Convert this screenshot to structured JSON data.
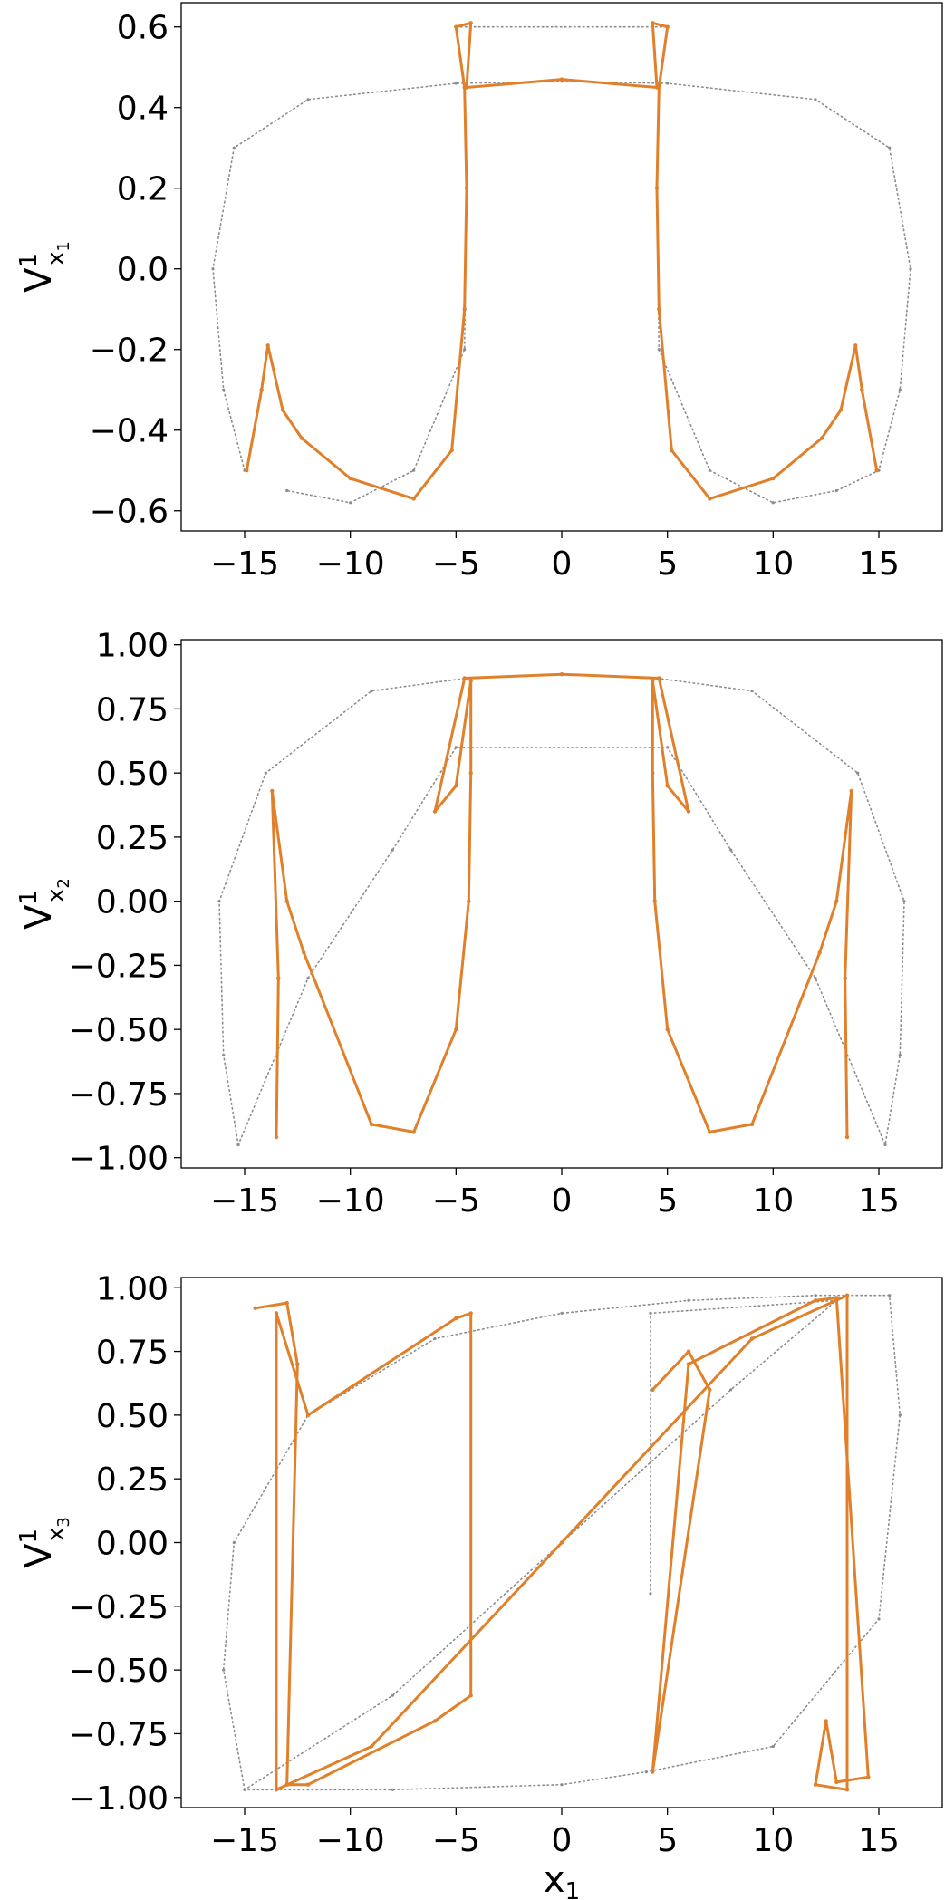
{
  "figure": {
    "xlabel": "x1",
    "colors": {
      "scan": "#8c8c8c",
      "trajectory": "#e0802a"
    }
  },
  "chart_data": [
    {
      "type": "scatter",
      "title": "",
      "ylabel": "V1x1",
      "xlim": [
        -18,
        18
      ],
      "ylim": [
        -0.65,
        0.66
      ],
      "xticks": [
        -15,
        -10,
        -5,
        0,
        5,
        10,
        15
      ],
      "xtick_labels": [
        "−15",
        "−10",
        "−5",
        "0",
        "5",
        "10",
        "15"
      ],
      "yticks": [
        0.6,
        0.4,
        0.2,
        0.0,
        -0.2,
        -0.4,
        -0.6
      ],
      "ytick_labels": [
        "0.6",
        "0.4",
        "0.2",
        "0.0",
        "−0.2",
        "−0.4",
        "−0.6"
      ],
      "grid": false,
      "series": [
        {
          "kind": "scan",
          "points": [
            [
              -15,
              -0.5
            ],
            [
              -16,
              -0.3
            ],
            [
              -16.5,
              0.0
            ],
            [
              -15.5,
              0.3
            ],
            [
              -12,
              0.42
            ],
            [
              -5,
              0.46
            ],
            [
              0,
              0.465
            ],
            [
              5,
              0.46
            ],
            [
              12,
              0.42
            ],
            [
              15.5,
              0.3
            ],
            [
              16.5,
              0.0
            ],
            [
              16,
              -0.3
            ],
            [
              15,
              -0.5
            ],
            [
              13,
              -0.55
            ],
            [
              10,
              -0.58
            ],
            [
              7,
              -0.5
            ],
            [
              4.6,
              -0.2
            ],
            [
              4.5,
              0.2
            ],
            [
              4.6,
              0.45
            ],
            [
              5,
              0.6
            ],
            [
              -5,
              0.6
            ],
            [
              -4.6,
              0.45
            ],
            [
              -4.5,
              0.2
            ],
            [
              -4.6,
              -0.2
            ],
            [
              -7,
              -0.5
            ],
            [
              -10,
              -0.58
            ],
            [
              -13,
              -0.55
            ]
          ]
        },
        {
          "kind": "trajectory",
          "points": [
            [
              -14.9,
              -0.5
            ],
            [
              -14.2,
              -0.3
            ],
            [
              -13.9,
              -0.19
            ],
            [
              -13.2,
              -0.35
            ],
            [
              -12.3,
              -0.42
            ],
            [
              -10,
              -0.52
            ],
            [
              -7,
              -0.57
            ],
            [
              -5.2,
              -0.45
            ],
            [
              -4.6,
              -0.1
            ],
            [
              -4.5,
              0.2
            ],
            [
              -4.6,
              0.45
            ],
            [
              -5,
              0.6
            ],
            [
              -4.3,
              0.61
            ],
            [
              -4.5,
              0.45
            ],
            [
              0,
              0.47
            ],
            [
              4.5,
              0.45
            ],
            [
              4.3,
              0.61
            ],
            [
              5,
              0.6
            ],
            [
              4.6,
              0.45
            ],
            [
              4.5,
              0.2
            ],
            [
              4.6,
              -0.1
            ],
            [
              5.2,
              -0.45
            ],
            [
              7,
              -0.57
            ],
            [
              10,
              -0.52
            ],
            [
              12.3,
              -0.42
            ],
            [
              13.2,
              -0.35
            ],
            [
              13.9,
              -0.19
            ],
            [
              14.2,
              -0.3
            ],
            [
              14.9,
              -0.5
            ]
          ]
        }
      ]
    },
    {
      "type": "scatter",
      "title": "",
      "ylabel": "V1x2",
      "xlim": [
        -18,
        18
      ],
      "ylim": [
        -1.04,
        1.02
      ],
      "xticks": [
        -15,
        -10,
        -5,
        0,
        5,
        10,
        15
      ],
      "xtick_labels": [
        "−15",
        "−10",
        "−5",
        "0",
        "5",
        "10",
        "15"
      ],
      "yticks": [
        1.0,
        0.75,
        0.5,
        0.25,
        0.0,
        -0.25,
        -0.5,
        -0.75,
        -1.0
      ],
      "ytick_labels": [
        "1.00",
        "0.75",
        "0.50",
        "0.25",
        "0.00",
        "−0.25",
        "−0.50",
        "−0.75",
        "−1.00"
      ],
      "grid": false,
      "series": [
        {
          "kind": "scan",
          "points": [
            [
              -15.3,
              -0.95
            ],
            [
              -16,
              -0.6
            ],
            [
              -16.2,
              0.0
            ],
            [
              -14,
              0.5
            ],
            [
              -9,
              0.82
            ],
            [
              -4.5,
              0.87
            ],
            [
              0,
              0.885
            ],
            [
              4.5,
              0.87
            ],
            [
              9,
              0.82
            ],
            [
              14,
              0.5
            ],
            [
              16.2,
              0.0
            ],
            [
              16,
              -0.6
            ],
            [
              15.3,
              -0.95
            ],
            [
              12,
              -0.3
            ],
            [
              8,
              0.2
            ],
            [
              5,
              0.6
            ],
            [
              -5,
              0.6
            ],
            [
              -8,
              0.2
            ],
            [
              -12,
              -0.3
            ],
            [
              -15.3,
              -0.95
            ]
          ]
        },
        {
          "kind": "trajectory",
          "points": [
            [
              -13.5,
              -0.92
            ],
            [
              -13.4,
              -0.3
            ],
            [
              -13.7,
              0.43
            ],
            [
              -13,
              0.0
            ],
            [
              -12.2,
              -0.2
            ],
            [
              -9,
              -0.87
            ],
            [
              -7,
              -0.9
            ],
            [
              -5,
              -0.5
            ],
            [
              -4.4,
              0.0
            ],
            [
              -4.3,
              0.5
            ],
            [
              -4.3,
              0.86
            ],
            [
              -5,
              0.45
            ],
            [
              -6,
              0.35
            ],
            [
              -4.6,
              0.87
            ],
            [
              0,
              0.885
            ],
            [
              4.6,
              0.87
            ],
            [
              6,
              0.35
            ],
            [
              5,
              0.45
            ],
            [
              4.3,
              0.86
            ],
            [
              4.3,
              0.5
            ],
            [
              4.4,
              0.0
            ],
            [
              5,
              -0.5
            ],
            [
              7,
              -0.9
            ],
            [
              9,
              -0.87
            ],
            [
              12.2,
              -0.2
            ],
            [
              13,
              0.0
            ],
            [
              13.7,
              0.43
            ],
            [
              13.4,
              -0.3
            ],
            [
              13.5,
              -0.92
            ]
          ]
        }
      ]
    },
    {
      "type": "scatter",
      "title": "",
      "ylabel": "V1x3",
      "xlim": [
        -18,
        18
      ],
      "ylim": [
        -1.04,
        1.04
      ],
      "xticks": [
        -15,
        -10,
        -5,
        0,
        5,
        10,
        15
      ],
      "xtick_labels": [
        "−15",
        "−10",
        "−5",
        "0",
        "5",
        "10",
        "15"
      ],
      "yticks": [
        1.0,
        0.75,
        0.5,
        0.25,
        0.0,
        -0.25,
        -0.5,
        -0.75,
        -1.0
      ],
      "ytick_labels": [
        "1.00",
        "0.75",
        "0.50",
        "0.25",
        "0.00",
        "−0.25",
        "−0.50",
        "−0.75",
        "−1.00"
      ],
      "xlabel": "x1",
      "grid": false,
      "series": [
        {
          "kind": "scan",
          "points": [
            [
              -15,
              -0.97
            ],
            [
              -16,
              -0.5
            ],
            [
              -15.5,
              0.0
            ],
            [
              -12,
              0.5
            ],
            [
              -6,
              0.8
            ],
            [
              0,
              0.9
            ],
            [
              6,
              0.95
            ],
            [
              12,
              0.97
            ],
            [
              15.5,
              0.97
            ],
            [
              16,
              0.5
            ],
            [
              15,
              -0.3
            ],
            [
              10,
              -0.8
            ],
            [
              4,
              -0.9
            ],
            [
              0,
              -0.95
            ],
            [
              -8,
              -0.97
            ],
            [
              -15,
              -0.97
            ],
            [
              -8,
              -0.6
            ],
            [
              0,
              0.0
            ],
            [
              8,
              0.6
            ],
            [
              13,
              0.95
            ],
            [
              4.2,
              0.9
            ],
            [
              4.2,
              -0.2
            ]
          ]
        },
        {
          "kind": "trajectory",
          "points": [
            [
              -14.5,
              0.92
            ],
            [
              -13,
              0.94
            ],
            [
              -12.5,
              0.7
            ],
            [
              -13,
              -0.95
            ],
            [
              -12,
              -0.95
            ],
            [
              -6,
              -0.7
            ],
            [
              -4.3,
              -0.6
            ],
            [
              -4.3,
              0.9
            ],
            [
              -5,
              0.88
            ],
            [
              -12,
              0.5
            ],
            [
              -13.5,
              0.9
            ],
            [
              -13.5,
              -0.97
            ],
            [
              -9,
              -0.8
            ],
            [
              0,
              0.0
            ],
            [
              9,
              0.8
            ],
            [
              13.5,
              0.97
            ],
            [
              13.5,
              -0.97
            ],
            [
              12,
              -0.95
            ],
            [
              12.5,
              -0.7
            ],
            [
              13,
              -0.94
            ],
            [
              14.5,
              -0.92
            ],
            [
              13,
              0.96
            ],
            [
              12,
              0.95
            ],
            [
              6,
              0.7
            ],
            [
              4.3,
              -0.9
            ],
            [
              7,
              0.6
            ],
            [
              6,
              0.75
            ],
            [
              4.3,
              0.6
            ]
          ]
        }
      ]
    }
  ]
}
